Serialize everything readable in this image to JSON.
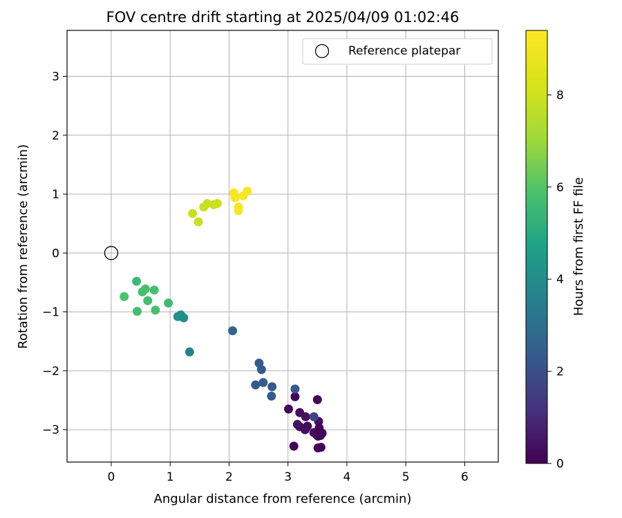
{
  "chart_data": {
    "type": "scatter",
    "title": "FOV centre drift starting at 2025/04/09 01:02:46",
    "xlabel": "Angular distance from reference (arcmin)",
    "ylabel": "Rotation from reference (arcmin)",
    "xlim": [
      -0.75,
      6.57
    ],
    "ylim": [
      -3.55,
      3.78
    ],
    "xticks": [
      0,
      1,
      2,
      3,
      4,
      5,
      6
    ],
    "yticks": [
      -3,
      -2,
      -1,
      0,
      1,
      2,
      3
    ],
    "xtick_labels": [
      "0",
      "1",
      "2",
      "3",
      "4",
      "5",
      "6"
    ],
    "ytick_labels": [
      "−3",
      "−2",
      "−1",
      "0",
      "1",
      "2",
      "3"
    ],
    "grid": true,
    "legend": {
      "placement": "top-right",
      "entries": [
        "Reference platepar"
      ]
    },
    "reference_point": {
      "x": 0,
      "y": 0,
      "label": "Reference platepar"
    },
    "colorbar": {
      "label": "Hours from first FF file",
      "colormap": "viridis",
      "range": [
        0,
        9.4
      ],
      "ticks": [
        0,
        2,
        4,
        6,
        8
      ],
      "tick_labels": [
        "0",
        "2",
        "4",
        "6",
        "8"
      ]
    },
    "series": [
      {
        "points": [
          {
            "x": 3.12,
            "y": -2.44,
            "c": 0.1
          },
          {
            "x": 3.5,
            "y": -2.49,
            "c": 0.1
          },
          {
            "x": 3.01,
            "y": -2.65,
            "c": 0.2
          },
          {
            "x": 3.2,
            "y": -2.71,
            "c": 0.3
          },
          {
            "x": 3.3,
            "y": -2.78,
            "c": 0.4
          },
          {
            "x": 3.52,
            "y": -2.86,
            "c": 0.3
          },
          {
            "x": 3.16,
            "y": -2.91,
            "c": 0.5
          },
          {
            "x": 3.2,
            "y": -2.95,
            "c": 0.3
          },
          {
            "x": 3.33,
            "y": -2.94,
            "c": 0.2
          },
          {
            "x": 3.29,
            "y": -3.0,
            "c": 0.3
          },
          {
            "x": 3.53,
            "y": -2.97,
            "c": 0.1
          },
          {
            "x": 3.44,
            "y": -3.05,
            "c": 0.2
          },
          {
            "x": 3.49,
            "y": -3.09,
            "c": 0.1
          },
          {
            "x": 3.58,
            "y": -3.06,
            "c": 0.1
          },
          {
            "x": 3.51,
            "y": -3.11,
            "c": 0.2
          },
          {
            "x": 3.55,
            "y": -3.1,
            "c": 0.1
          },
          {
            "x": 3.1,
            "y": -3.28,
            "c": 0.1
          },
          {
            "x": 3.51,
            "y": -3.31,
            "c": 0.1
          },
          {
            "x": 3.56,
            "y": -3.3,
            "c": 0.1
          },
          {
            "x": 3.44,
            "y": -2.78,
            "c": 1.7
          },
          {
            "x": 3.12,
            "y": -2.31,
            "c": 2.3
          },
          {
            "x": 2.51,
            "y": -1.87,
            "c": 2.3
          },
          {
            "x": 2.55,
            "y": -1.98,
            "c": 2.3
          },
          {
            "x": 2.58,
            "y": -2.2,
            "c": 2.4
          },
          {
            "x": 2.45,
            "y": -2.24,
            "c": 2.3
          },
          {
            "x": 2.73,
            "y": -2.27,
            "c": 2.3
          },
          {
            "x": 2.72,
            "y": -2.43,
            "c": 2.3
          },
          {
            "x": 2.06,
            "y": -1.32,
            "c": 2.6
          },
          {
            "x": 1.33,
            "y": -1.68,
            "c": 3.6
          },
          {
            "x": 1.13,
            "y": -1.08,
            "c": 4.1
          },
          {
            "x": 1.18,
            "y": -1.05,
            "c": 4.1
          },
          {
            "x": 1.23,
            "y": -1.1,
            "c": 4.0
          },
          {
            "x": 0.97,
            "y": -0.85,
            "c": 5.6
          },
          {
            "x": 0.43,
            "y": -0.48,
            "c": 5.6
          },
          {
            "x": 0.58,
            "y": -0.61,
            "c": 5.8
          },
          {
            "x": 0.73,
            "y": -0.63,
            "c": 5.8
          },
          {
            "x": 0.53,
            "y": -0.66,
            "c": 5.8
          },
          {
            "x": 0.22,
            "y": -0.74,
            "c": 5.9
          },
          {
            "x": 0.62,
            "y": -0.81,
            "c": 5.7
          },
          {
            "x": 0.44,
            "y": -0.99,
            "c": 5.7
          },
          {
            "x": 0.75,
            "y": -0.97,
            "c": 5.8
          },
          {
            "x": 1.38,
            "y": 0.67,
            "c": 7.9
          },
          {
            "x": 1.48,
            "y": 0.53,
            "c": 7.9
          },
          {
            "x": 1.57,
            "y": 0.78,
            "c": 7.9
          },
          {
            "x": 1.63,
            "y": 0.84,
            "c": 7.9
          },
          {
            "x": 1.74,
            "y": 0.82,
            "c": 8.0
          },
          {
            "x": 1.8,
            "y": 0.84,
            "c": 8.0
          },
          {
            "x": 2.08,
            "y": 1.02,
            "c": 9.2
          },
          {
            "x": 2.1,
            "y": 0.94,
            "c": 9.2
          },
          {
            "x": 2.16,
            "y": 0.78,
            "c": 9.2
          },
          {
            "x": 2.16,
            "y": 0.72,
            "c": 9.2
          },
          {
            "x": 2.24,
            "y": 0.97,
            "c": 9.2
          },
          {
            "x": 2.31,
            "y": 1.05,
            "c": 9.2
          }
        ]
      }
    ]
  }
}
